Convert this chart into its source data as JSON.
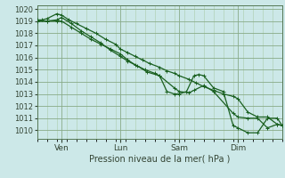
{
  "xlabel": "Pression niveau de la mer( hPa )",
  "bg_color": "#cce8e8",
  "grid_major_color": "#88aa88",
  "grid_minor_color": "#aaccaa",
  "line_color": "#1a6020",
  "xlim": [
    0,
    100
  ],
  "ylim": [
    1009.3,
    1020.3
  ],
  "yticks": [
    1010,
    1011,
    1012,
    1013,
    1014,
    1015,
    1016,
    1017,
    1018,
    1019,
    1020
  ],
  "xtick_positions": [
    10,
    34,
    58,
    82
  ],
  "xtick_labels": [
    "Ven",
    "Lun",
    "Sam",
    "Dim"
  ],
  "line1_x": [
    0,
    2,
    4,
    8,
    10,
    13,
    16,
    20,
    24,
    28,
    32,
    34,
    37,
    40,
    43,
    46,
    50,
    53,
    56,
    58,
    62,
    65,
    68,
    72,
    76,
    80,
    82,
    86,
    90,
    94,
    98,
    100
  ],
  "line1_y": [
    1019.1,
    1019.1,
    1019.2,
    1019.6,
    1019.5,
    1019.1,
    1018.8,
    1018.4,
    1018.0,
    1017.5,
    1017.1,
    1016.7,
    1016.4,
    1016.1,
    1015.8,
    1015.5,
    1015.2,
    1014.9,
    1014.7,
    1014.5,
    1014.2,
    1013.9,
    1013.6,
    1013.3,
    1013.0,
    1012.8,
    1012.6,
    1011.5,
    1011.1,
    1011.1,
    1010.5,
    1010.4
  ],
  "line2_x": [
    0,
    4,
    8,
    10,
    14,
    18,
    22,
    26,
    30,
    34,
    37,
    40,
    44,
    48,
    50,
    53,
    56,
    58,
    61,
    64,
    66,
    68,
    72,
    76,
    80,
    82,
    86,
    90,
    94,
    98,
    100
  ],
  "line2_y": [
    1019.0,
    1019.0,
    1019.0,
    1019.0,
    1018.5,
    1018.0,
    1017.5,
    1017.1,
    1016.7,
    1016.3,
    1015.8,
    1015.4,
    1015.0,
    1014.7,
    1014.5,
    1013.2,
    1013.0,
    1013.0,
    1013.2,
    1014.5,
    1014.6,
    1014.5,
    1013.5,
    1013.2,
    1010.4,
    1010.2,
    1009.8,
    1009.8,
    1011.0,
    1011.0,
    1010.4
  ],
  "line3_x": [
    0,
    4,
    8,
    10,
    14,
    18,
    22,
    26,
    30,
    34,
    37,
    41,
    45,
    50,
    56,
    58,
    62,
    64,
    68,
    72,
    80,
    82,
    86,
    90,
    94,
    98,
    100
  ],
  "line3_y": [
    1019.0,
    1019.0,
    1019.1,
    1019.3,
    1018.8,
    1018.2,
    1017.7,
    1017.2,
    1016.6,
    1016.1,
    1015.7,
    1015.3,
    1014.8,
    1014.5,
    1013.5,
    1013.2,
    1013.1,
    1013.3,
    1013.7,
    1013.2,
    1011.4,
    1011.1,
    1011.0,
    1011.0,
    1010.2,
    1010.5,
    1010.4
  ],
  "marker_size": 2.5,
  "line_width": 0.9
}
